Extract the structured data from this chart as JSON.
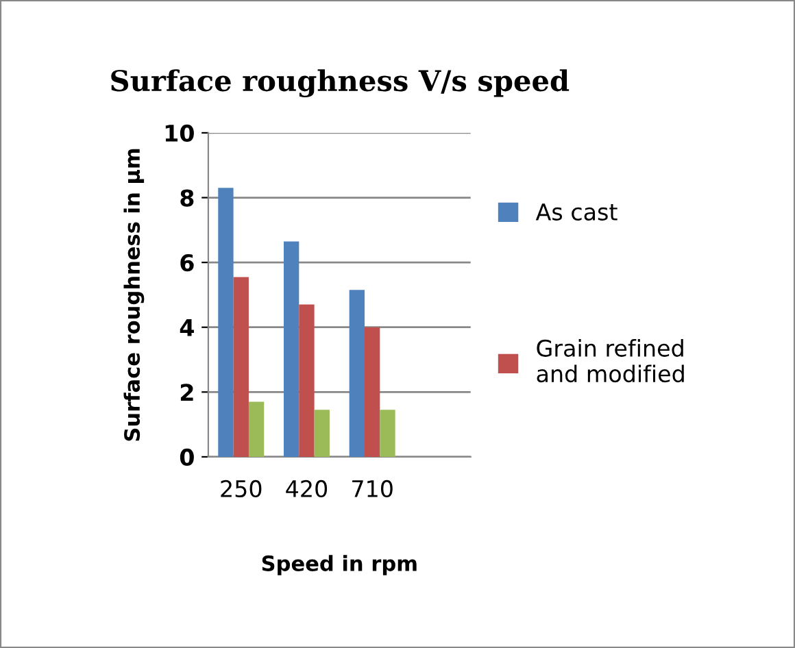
{
  "chart_data": {
    "type": "bar",
    "title": "Surface roughness V/s speed",
    "xlabel": "Speed in rpm",
    "ylabel": "Surface roughness in µm",
    "categories": [
      "250",
      "420",
      "710",
      null
    ],
    "series": [
      {
        "name": "As cast",
        "color": "#4f81bd",
        "values": [
          8.3,
          6.65,
          5.15,
          null
        ]
      },
      {
        "name": "Grain refined\nand modified",
        "color": "#c0504d",
        "values": [
          5.55,
          4.7,
          4.0,
          null
        ]
      },
      {
        "color": "#9bbb59",
        "values": [
          1.7,
          1.45,
          1.45,
          null
        ]
      }
    ],
    "ylim": [
      0,
      10
    ],
    "yticks": [
      0,
      2,
      4,
      6,
      8,
      10
    ],
    "grid": "y",
    "legend": "right"
  }
}
